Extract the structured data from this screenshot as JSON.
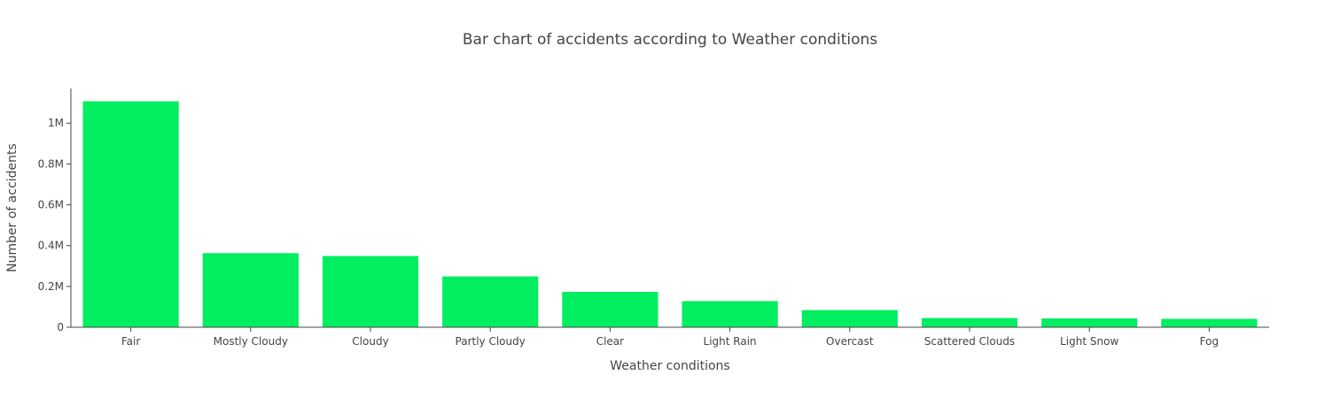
{
  "chart_data": {
    "type": "bar",
    "title": "Bar chart of accidents according to Weather conditions",
    "xlabel": "Weather conditions",
    "ylabel": "Number of accidents",
    "categories": [
      "Fair",
      "Mostly Cloudy",
      "Cloudy",
      "Partly Cloudy",
      "Clear",
      "Light Rain",
      "Overcast",
      "Scattered Clouds",
      "Light Snow",
      "Fog"
    ],
    "values": [
      1107000,
      363000,
      349000,
      249000,
      173000,
      128000,
      84000,
      45000,
      43000,
      41000
    ],
    "ylim": [
      0,
      1170000
    ],
    "yticks": [
      0,
      200000,
      400000,
      600000,
      800000,
      1000000
    ],
    "ytick_labels": [
      "0",
      "0.2M",
      "0.4M",
      "0.6M",
      "0.8M",
      "1M"
    ],
    "bar_color": "#00ee5f",
    "grid": false,
    "legend": "none"
  }
}
